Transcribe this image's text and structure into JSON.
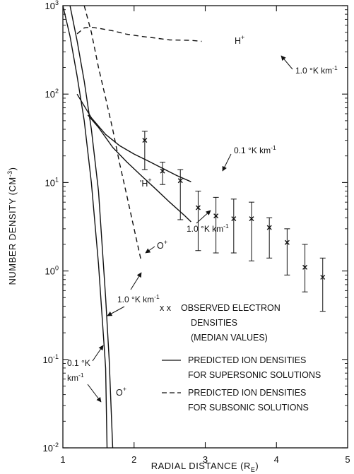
{
  "chart_data": {
    "type": "line",
    "xlabel": "RADIAL DISTANCE (R",
    "xlabel_sub": "E",
    "xlabel_close": ")",
    "ylabel": "NUMBER DENSITY (CM",
    "ylabel_sup": "-3",
    "ylabel_close": ")",
    "xlim": [
      1,
      5
    ],
    "ylim": [
      0.01,
      1000
    ],
    "y_scale": "log",
    "x_ticks": [
      "1",
      "2",
      "3",
      "4",
      "5"
    ],
    "y_ticks": [
      {
        "base": "10",
        "exp": "-2",
        "value": 0.01
      },
      {
        "base": "10",
        "exp": "-1",
        "value": 0.1
      },
      {
        "base": "10",
        "exp": "0",
        "value": 1
      },
      {
        "base": "10",
        "exp": "1",
        "value": 10
      },
      {
        "base": "10",
        "exp": "2",
        "value": 100
      },
      {
        "base": "10",
        "exp": "3",
        "value": 1000
      }
    ],
    "observed": [
      {
        "x": 2.15,
        "y": 30,
        "lo": 14,
        "hi": 38
      },
      {
        "x": 2.4,
        "y": 13.5,
        "lo": 9.5,
        "hi": 17
      },
      {
        "x": 2.65,
        "y": 10.5,
        "lo": 3.8,
        "hi": 14
      },
      {
        "x": 2.9,
        "y": 5.2,
        "lo": 1.7,
        "hi": 8
      },
      {
        "x": 3.15,
        "y": 4.2,
        "lo": 1.6,
        "hi": 6.8
      },
      {
        "x": 3.4,
        "y": 3.9,
        "lo": 1.6,
        "hi": 6.5
      },
      {
        "x": 3.65,
        "y": 3.9,
        "lo": 1.3,
        "hi": 6
      },
      {
        "x": 3.9,
        "y": 3.1,
        "lo": 1.4,
        "hi": 4
      },
      {
        "x": 4.15,
        "y": 2.1,
        "lo": 0.9,
        "hi": 3
      },
      {
        "x": 4.4,
        "y": 1.1,
        "lo": 0.58,
        "hi": 2
      },
      {
        "x": 4.65,
        "y": 0.85,
        "lo": 0.35,
        "hi": 1.4
      }
    ],
    "series": [
      {
        "style": "solid",
        "points": [
          [
            1.1,
            1000
          ],
          [
            1.2,
            400
          ],
          [
            1.3,
            140
          ],
          [
            1.4,
            40
          ],
          [
            1.5,
            8
          ],
          [
            1.6,
            0.5
          ],
          [
            1.65,
            0.1
          ],
          [
            1.7,
            0.01
          ]
        ]
      },
      {
        "style": "solid",
        "points": [
          [
            1.0,
            1000
          ],
          [
            1.1,
            450
          ],
          [
            1.2,
            160
          ],
          [
            1.3,
            50
          ],
          [
            1.4,
            10
          ],
          [
            1.5,
            1.2
          ],
          [
            1.6,
            0.08
          ],
          [
            1.62,
            0.01
          ]
        ]
      },
      {
        "style": "solid",
        "points": [
          [
            1.2,
            100
          ],
          [
            1.4,
            54
          ],
          [
            1.6,
            35
          ],
          [
            1.8,
            26
          ],
          [
            2.0,
            21
          ],
          [
            2.2,
            17.5
          ],
          [
            2.4,
            14.5
          ],
          [
            2.6,
            12
          ],
          [
            2.8,
            10.2
          ]
        ]
      },
      {
        "style": "solid",
        "points": [
          [
            1.35,
            58
          ],
          [
            1.5,
            42
          ],
          [
            1.7,
            25
          ],
          [
            1.9,
            17
          ],
          [
            2.1,
            12
          ],
          [
            2.3,
            8.5
          ],
          [
            2.5,
            6
          ],
          [
            2.7,
            4.3
          ],
          [
            2.8,
            3.6
          ]
        ]
      },
      {
        "style": "dashed",
        "points": [
          [
            1.2,
            480
          ],
          [
            1.3,
            560
          ],
          [
            1.4,
            570
          ],
          [
            1.5,
            555
          ],
          [
            1.7,
            520
          ],
          [
            1.9,
            475
          ],
          [
            2.1,
            450
          ],
          [
            2.3,
            430
          ],
          [
            2.5,
            410
          ],
          [
            2.8,
            405
          ],
          [
            2.95,
            395
          ]
        ]
      },
      {
        "style": "dashed",
        "points": [
          [
            1.3,
            1000
          ],
          [
            1.4,
            500
          ],
          [
            1.5,
            200
          ],
          [
            1.6,
            90
          ],
          [
            1.7,
            40
          ],
          [
            1.8,
            16
          ],
          [
            1.9,
            7
          ],
          [
            2.0,
            3
          ],
          [
            2.1,
            1.3
          ]
        ]
      }
    ],
    "annotations": {
      "h_plus_top": "H",
      "h_plus_mid": "H",
      "plus": "+",
      "one_k_top": "1.0 °K km",
      "one_k_mid": "1.0 °K km",
      "one_k_left": "1.0 °K km",
      "point_one_k_mid": "0.1 °K km",
      "point_one_k_left_1": "0.1 °K",
      "point_one_k_left_2": "km",
      "minus_one": "-1",
      "o_plus_mid": "O",
      "o_plus_bottom": "O",
      "tick_mark": "'"
    },
    "legend": {
      "observed_marker": "x x",
      "observed_1": "OBSERVED ELECTRON",
      "observed_2": "DENSITIES",
      "observed_3": "(MEDIAN VALUES)",
      "solid_1": "PREDICTED ION DENSITIES",
      "solid_2": "FOR SUPERSONIC SOLUTIONS",
      "dashed_1": "PREDICTED ION DENSITIES",
      "dashed_2": "FOR SUBSONIC SOLUTIONS"
    }
  }
}
